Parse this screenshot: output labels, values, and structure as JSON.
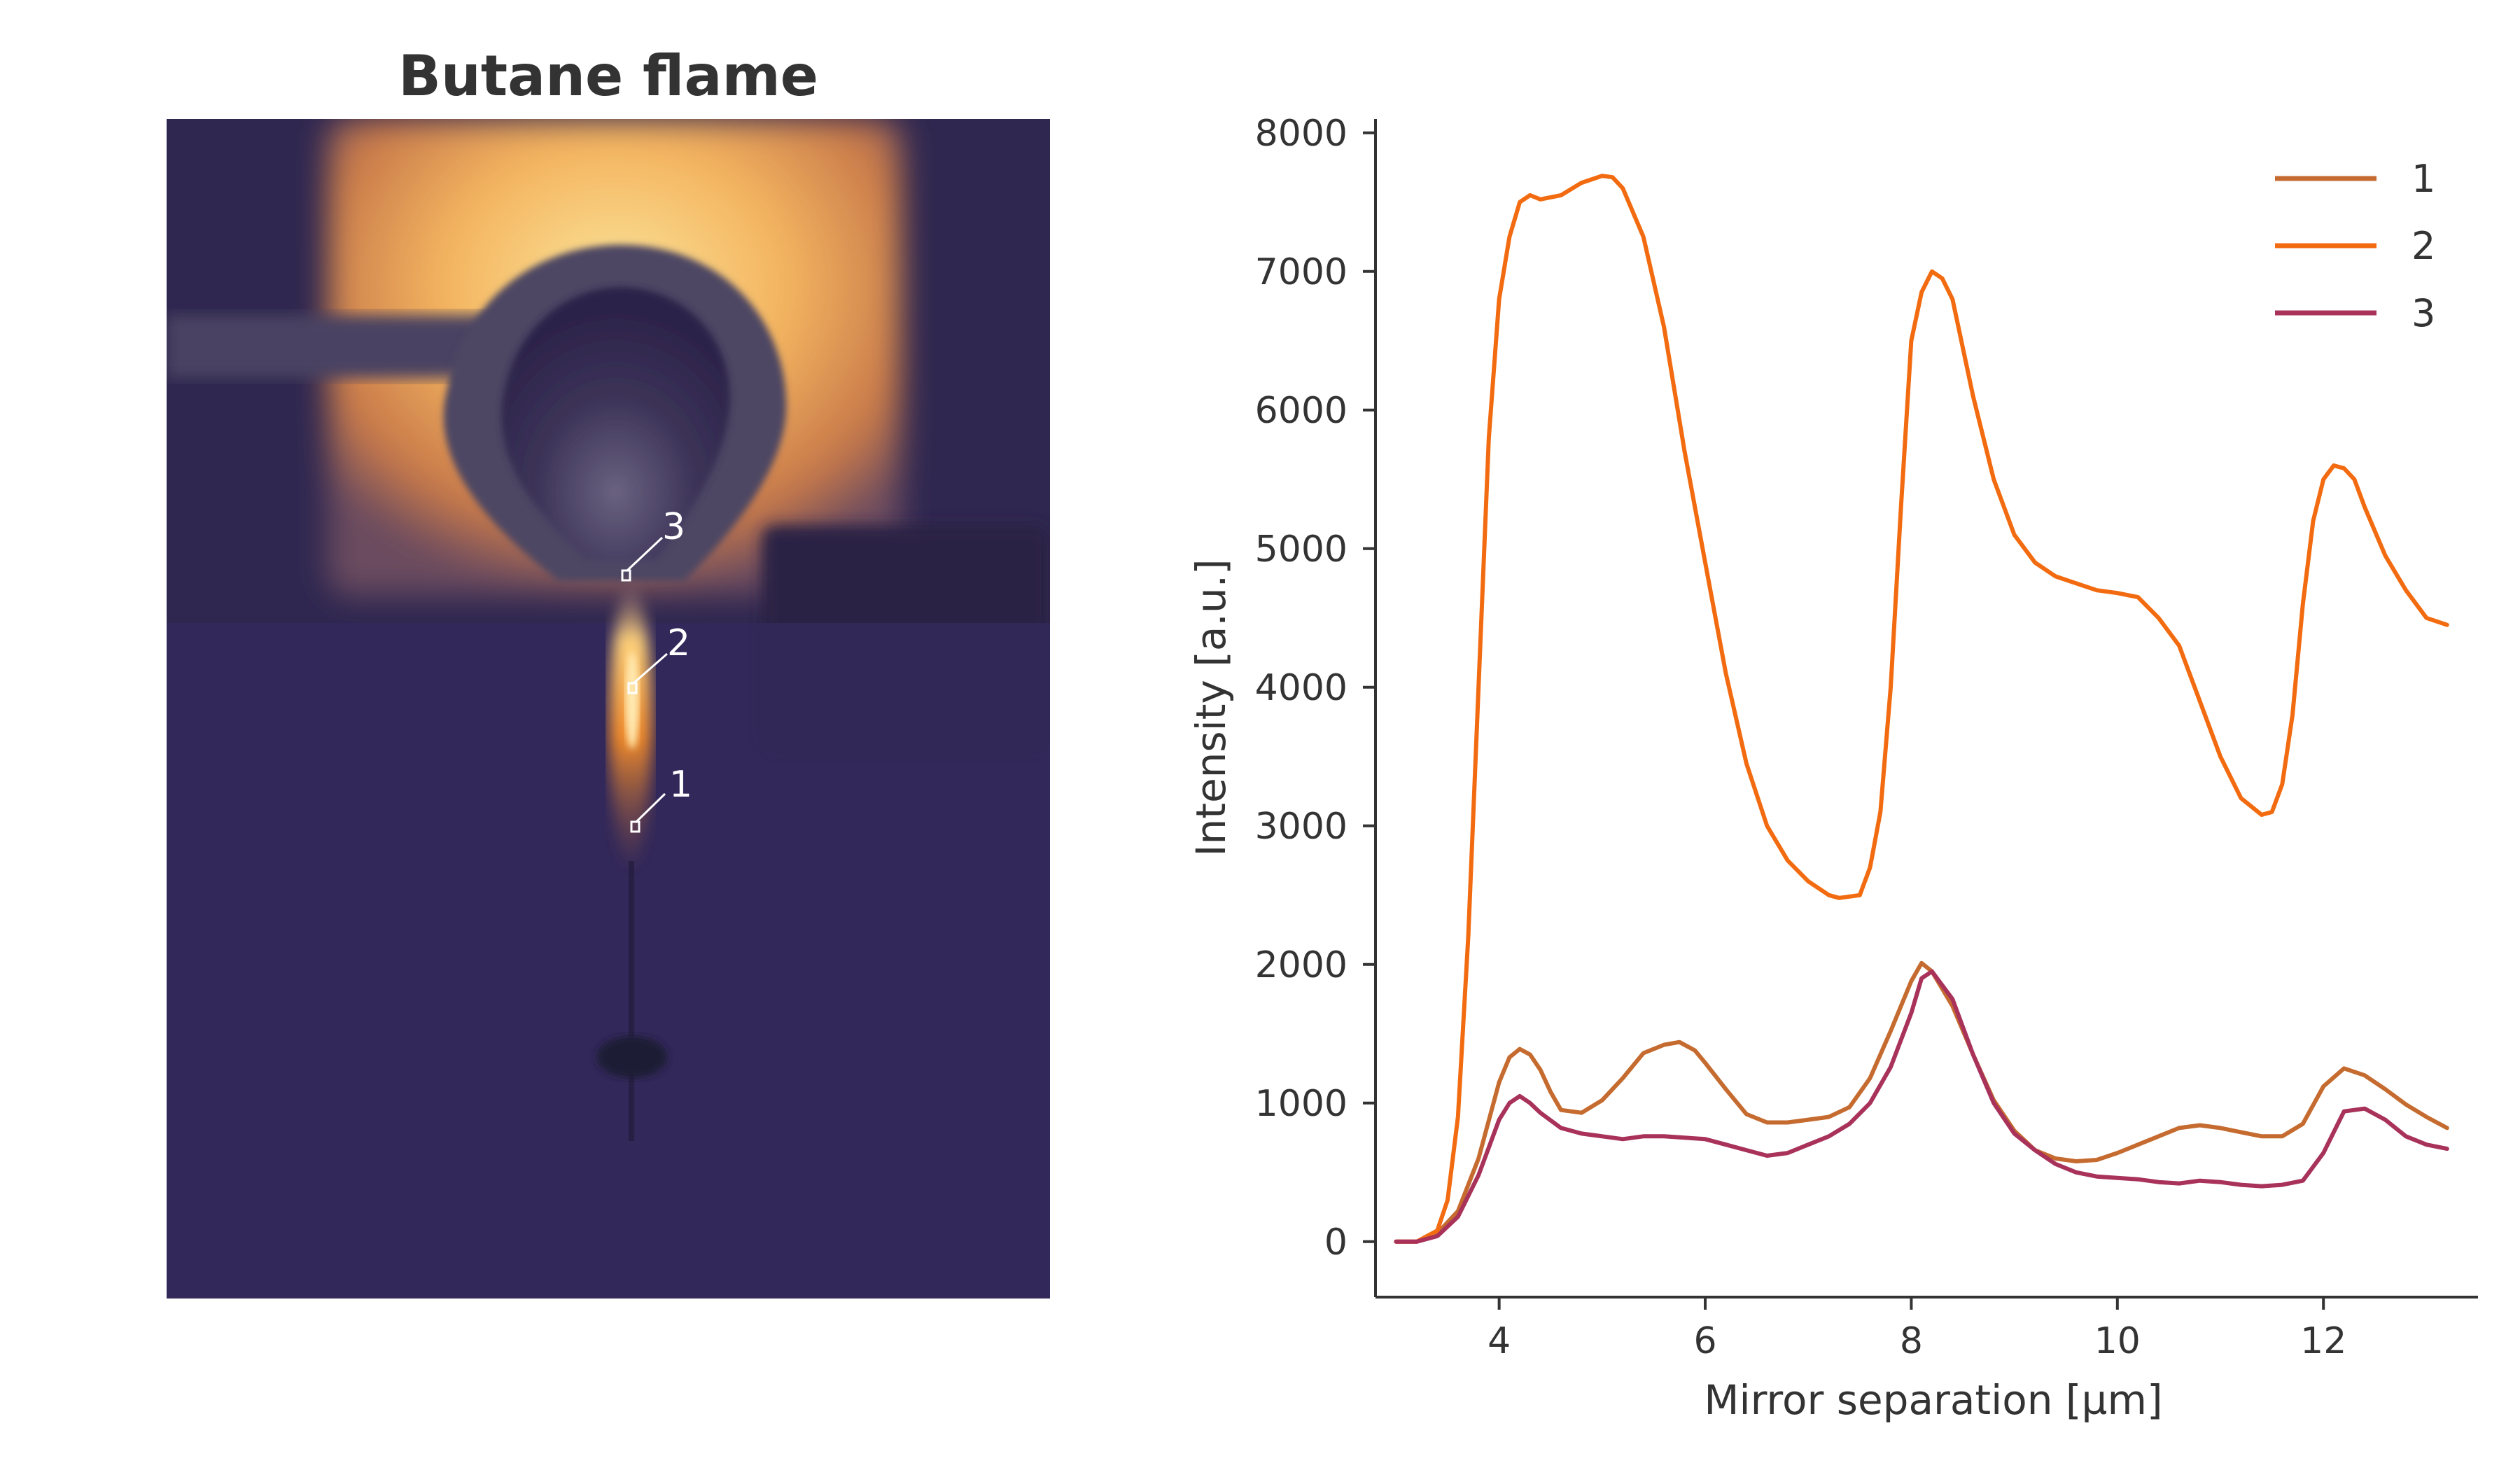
{
  "image_panel": {
    "title": "Butane flame",
    "markers": [
      {
        "label": "3"
      },
      {
        "label": "2"
      },
      {
        "label": "1"
      }
    ]
  },
  "chart_data": {
    "type": "line",
    "title": "",
    "xlabel": "Mirror separation [µm]",
    "ylabel": "Intensity [a.u.]",
    "xlim": [
      2.8,
      13.5
    ],
    "ylim": [
      -400,
      8100
    ],
    "xticks": [
      4,
      6,
      8,
      10,
      12
    ],
    "yticks": [
      0,
      1000,
      2000,
      3000,
      4000,
      5000,
      6000,
      7000,
      8000
    ],
    "grid": false,
    "legend_position": "top-right",
    "series": [
      {
        "name": "1",
        "color": "#c56b30",
        "x": [
          3.0,
          3.2,
          3.4,
          3.6,
          3.8,
          4.0,
          4.1,
          4.2,
          4.3,
          4.4,
          4.5,
          4.6,
          4.8,
          5.0,
          5.2,
          5.4,
          5.6,
          5.75,
          5.9,
          6.0,
          6.2,
          6.4,
          6.6,
          6.8,
          7.0,
          7.2,
          7.4,
          7.6,
          7.8,
          8.0,
          8.1,
          8.2,
          8.4,
          8.6,
          8.8,
          9.0,
          9.2,
          9.4,
          9.6,
          9.8,
          10.0,
          10.2,
          10.4,
          10.6,
          10.8,
          11.0,
          11.2,
          11.4,
          11.6,
          11.8,
          12.0,
          12.2,
          12.4,
          12.6,
          12.8,
          13.0,
          13.2
        ],
        "y": [
          0,
          0,
          60,
          220,
          600,
          1150,
          1330,
          1390,
          1350,
          1240,
          1080,
          950,
          930,
          1020,
          1180,
          1360,
          1420,
          1440,
          1380,
          1290,
          1100,
          920,
          860,
          860,
          880,
          900,
          970,
          1180,
          1520,
          1880,
          2010,
          1950,
          1700,
          1350,
          1020,
          800,
          660,
          600,
          580,
          590,
          640,
          700,
          760,
          820,
          840,
          820,
          790,
          760,
          760,
          850,
          1120,
          1250,
          1200,
          1100,
          990,
          900,
          820
        ]
      },
      {
        "name": "2",
        "color": "#f26b10",
        "x": [
          3.0,
          3.2,
          3.4,
          3.5,
          3.6,
          3.7,
          3.8,
          3.9,
          4.0,
          4.1,
          4.2,
          4.3,
          4.4,
          4.6,
          4.8,
          5.0,
          5.1,
          5.2,
          5.4,
          5.6,
          5.8,
          6.0,
          6.2,
          6.4,
          6.6,
          6.8,
          7.0,
          7.2,
          7.3,
          7.5,
          7.6,
          7.7,
          7.8,
          7.9,
          8.0,
          8.1,
          8.2,
          8.3,
          8.4,
          8.6,
          8.8,
          9.0,
          9.2,
          9.4,
          9.6,
          9.8,
          10.0,
          10.2,
          10.4,
          10.6,
          10.8,
          11.0,
          11.2,
          11.4,
          11.5,
          11.6,
          11.7,
          11.8,
          11.9,
          12.0,
          12.1,
          12.2,
          12.3,
          12.4,
          12.6,
          12.8,
          13.0,
          13.2
        ],
        "y": [
          0,
          0,
          80,
          300,
          900,
          2200,
          4000,
          5800,
          6800,
          7250,
          7500,
          7550,
          7520,
          7550,
          7640,
          7690,
          7680,
          7600,
          7250,
          6600,
          5700,
          4900,
          4100,
          3450,
          3000,
          2750,
          2600,
          2500,
          2480,
          2500,
          2700,
          3100,
          4000,
          5300,
          6500,
          6850,
          7000,
          6950,
          6800,
          6100,
          5500,
          5100,
          4900,
          4800,
          4750,
          4700,
          4680,
          4650,
          4500,
          4300,
          3900,
          3500,
          3200,
          3080,
          3100,
          3300,
          3800,
          4600,
          5200,
          5500,
          5600,
          5580,
          5500,
          5300,
          4950,
          4700,
          4500,
          4450
        ]
      },
      {
        "name": "3",
        "color": "#a8325a",
        "x": [
          3.0,
          3.2,
          3.4,
          3.6,
          3.8,
          4.0,
          4.1,
          4.2,
          4.3,
          4.4,
          4.6,
          4.8,
          5.0,
          5.2,
          5.4,
          5.6,
          5.8,
          6.0,
          6.2,
          6.4,
          6.6,
          6.8,
          7.0,
          7.2,
          7.4,
          7.6,
          7.8,
          8.0,
          8.1,
          8.2,
          8.4,
          8.6,
          8.8,
          9.0,
          9.2,
          9.4,
          9.6,
          9.8,
          10.0,
          10.2,
          10.4,
          10.6,
          10.8,
          11.0,
          11.2,
          11.4,
          11.6,
          11.8,
          12.0,
          12.2,
          12.4,
          12.6,
          12.8,
          13.0,
          13.2
        ],
        "y": [
          0,
          0,
          40,
          180,
          480,
          880,
          1000,
          1050,
          1000,
          930,
          820,
          780,
          760,
          740,
          760,
          760,
          750,
          740,
          700,
          660,
          620,
          640,
          700,
          760,
          850,
          1000,
          1260,
          1650,
          1900,
          1950,
          1750,
          1350,
          1000,
          780,
          660,
          560,
          500,
          470,
          460,
          450,
          430,
          420,
          440,
          430,
          410,
          400,
          410,
          440,
          640,
          940,
          960,
          880,
          760,
          700,
          670
        ]
      }
    ]
  }
}
